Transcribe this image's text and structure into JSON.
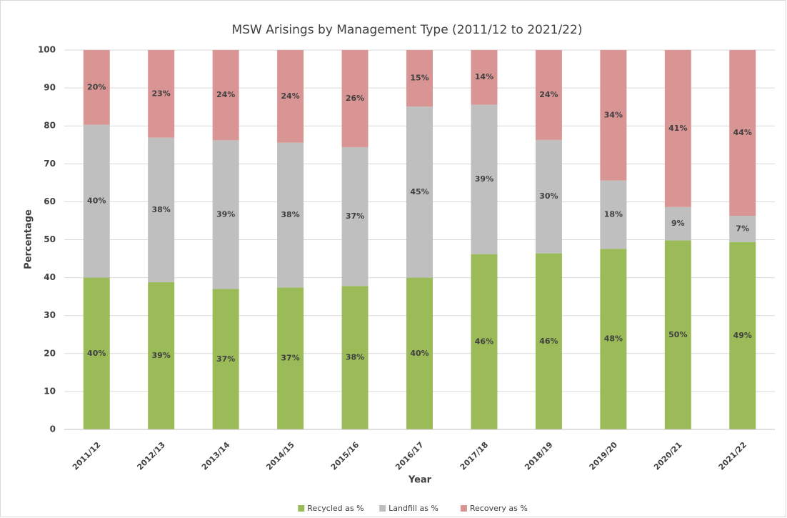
{
  "chart_data": {
    "type": "stacked_bar",
    "title": "MSW Arisings by Management Type (2011/12 to 2021/22)",
    "x_label": "Year",
    "y_label": "Percentage",
    "categories": [
      "2011/12",
      "2012/13",
      "2013/14",
      "2014/15",
      "2015/16",
      "2016/17",
      "2017/18",
      "2018/19",
      "2019/20",
      "2020/21",
      "2021/22"
    ],
    "series": [
      {
        "name": "Recycled as %",
        "color": "#9bbb59",
        "values": [
          40.0,
          38.8,
          37.0,
          37.4,
          37.8,
          40.0,
          46.2,
          46.4,
          47.6,
          49.8,
          49.4
        ],
        "value_labels": [
          "40%",
          "39%",
          "37%",
          "37%",
          "38%",
          "40%",
          "46%",
          "46%",
          "48%",
          "50%",
          "49%"
        ]
      },
      {
        "name": "Landfill as %",
        "color": "#bfbfbf",
        "values": [
          40.3,
          38.1,
          39.2,
          38.2,
          36.6,
          45.1,
          39.4,
          29.9,
          18.0,
          8.8,
          6.9
        ],
        "value_labels": [
          "40%",
          "38%",
          "39%",
          "38%",
          "37%",
          "45%",
          "39%",
          "30%",
          "18%",
          "9%",
          "7%"
        ]
      },
      {
        "name": "Recovery as %",
        "color": "#d99594",
        "values": [
          19.7,
          23.1,
          23.8,
          24.4,
          25.6,
          14.9,
          14.4,
          23.7,
          34.4,
          41.4,
          43.7
        ],
        "value_labels": [
          "20%",
          "23%",
          "24%",
          "24%",
          "26%",
          "15%",
          "14%",
          "24%",
          "34%",
          "41%",
          "44%"
        ]
      }
    ],
    "ylim": [
      0,
      100
    ],
    "yticks": [
      0,
      10,
      20,
      30,
      40,
      50,
      60,
      70,
      80,
      90,
      100
    ],
    "grid": true,
    "legend": "bottom"
  }
}
